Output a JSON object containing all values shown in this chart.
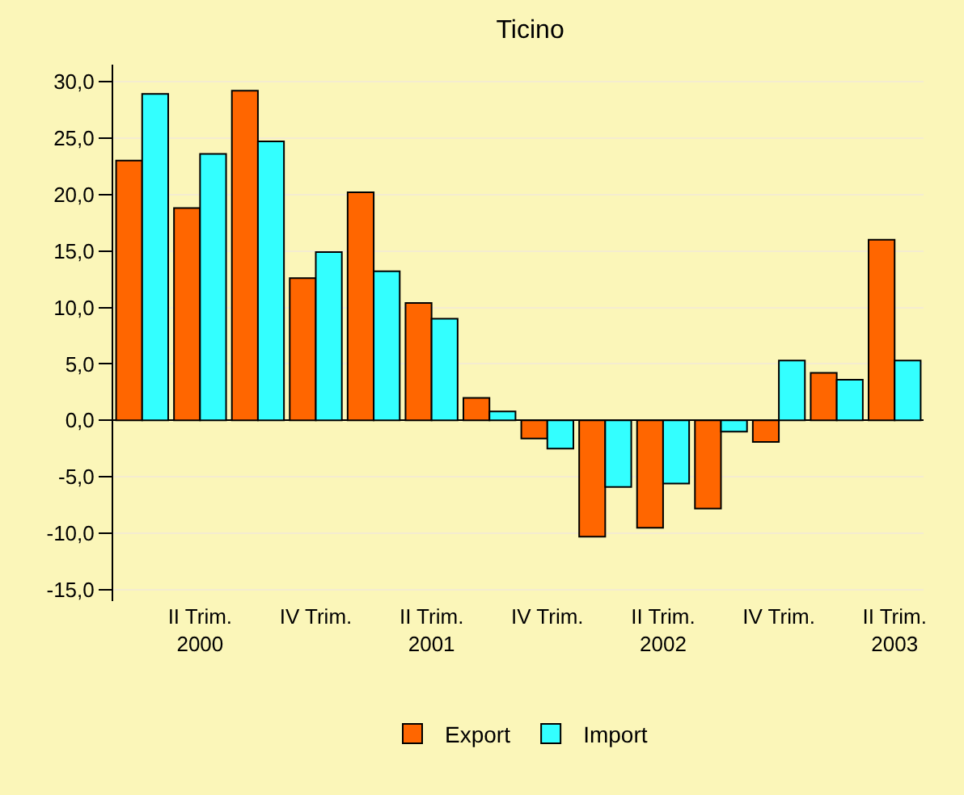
{
  "chart_data": {
    "type": "bar",
    "title": "Ticino",
    "categories": [
      null,
      "II Trim.\n2000",
      null,
      "IV Trim.",
      null,
      "II Trim.\n2001",
      null,
      "IV Trim.",
      null,
      "II Trim.\n2002",
      null,
      "IV Trim.",
      null,
      "II Trim.\n2003"
    ],
    "series": [
      {
        "name": "Export",
        "color": "#ff6600",
        "values": [
          23.0,
          18.8,
          29.2,
          12.6,
          20.2,
          10.4,
          2.0,
          -1.6,
          -10.3,
          -9.5,
          -7.8,
          -1.9,
          4.2,
          16.0
        ]
      },
      {
        "name": "Import",
        "color": "#33ffff",
        "values": [
          28.9,
          23.6,
          24.7,
          14.9,
          13.2,
          9.0,
          0.8,
          -2.5,
          -5.9,
          -5.6,
          -1.0,
          5.3,
          3.6,
          5.3
        ]
      }
    ],
    "ylim": [
      -16,
      31.5
    ],
    "yticks": [
      {
        "value": -15,
        "label": "-15,0"
      },
      {
        "value": -10,
        "label": "-10,0"
      },
      {
        "value": -5,
        "label": "-5,0"
      },
      {
        "value": 0,
        "label": "0,0"
      },
      {
        "value": 5,
        "label": "5,0"
      },
      {
        "value": 10,
        "label": "10,0"
      },
      {
        "value": 15,
        "label": "15,0"
      },
      {
        "value": 20,
        "label": "20,0"
      },
      {
        "value": 25,
        "label": "25,0"
      },
      {
        "value": 30,
        "label": "30,0"
      }
    ],
    "grid": "y",
    "legend": "bottom"
  }
}
